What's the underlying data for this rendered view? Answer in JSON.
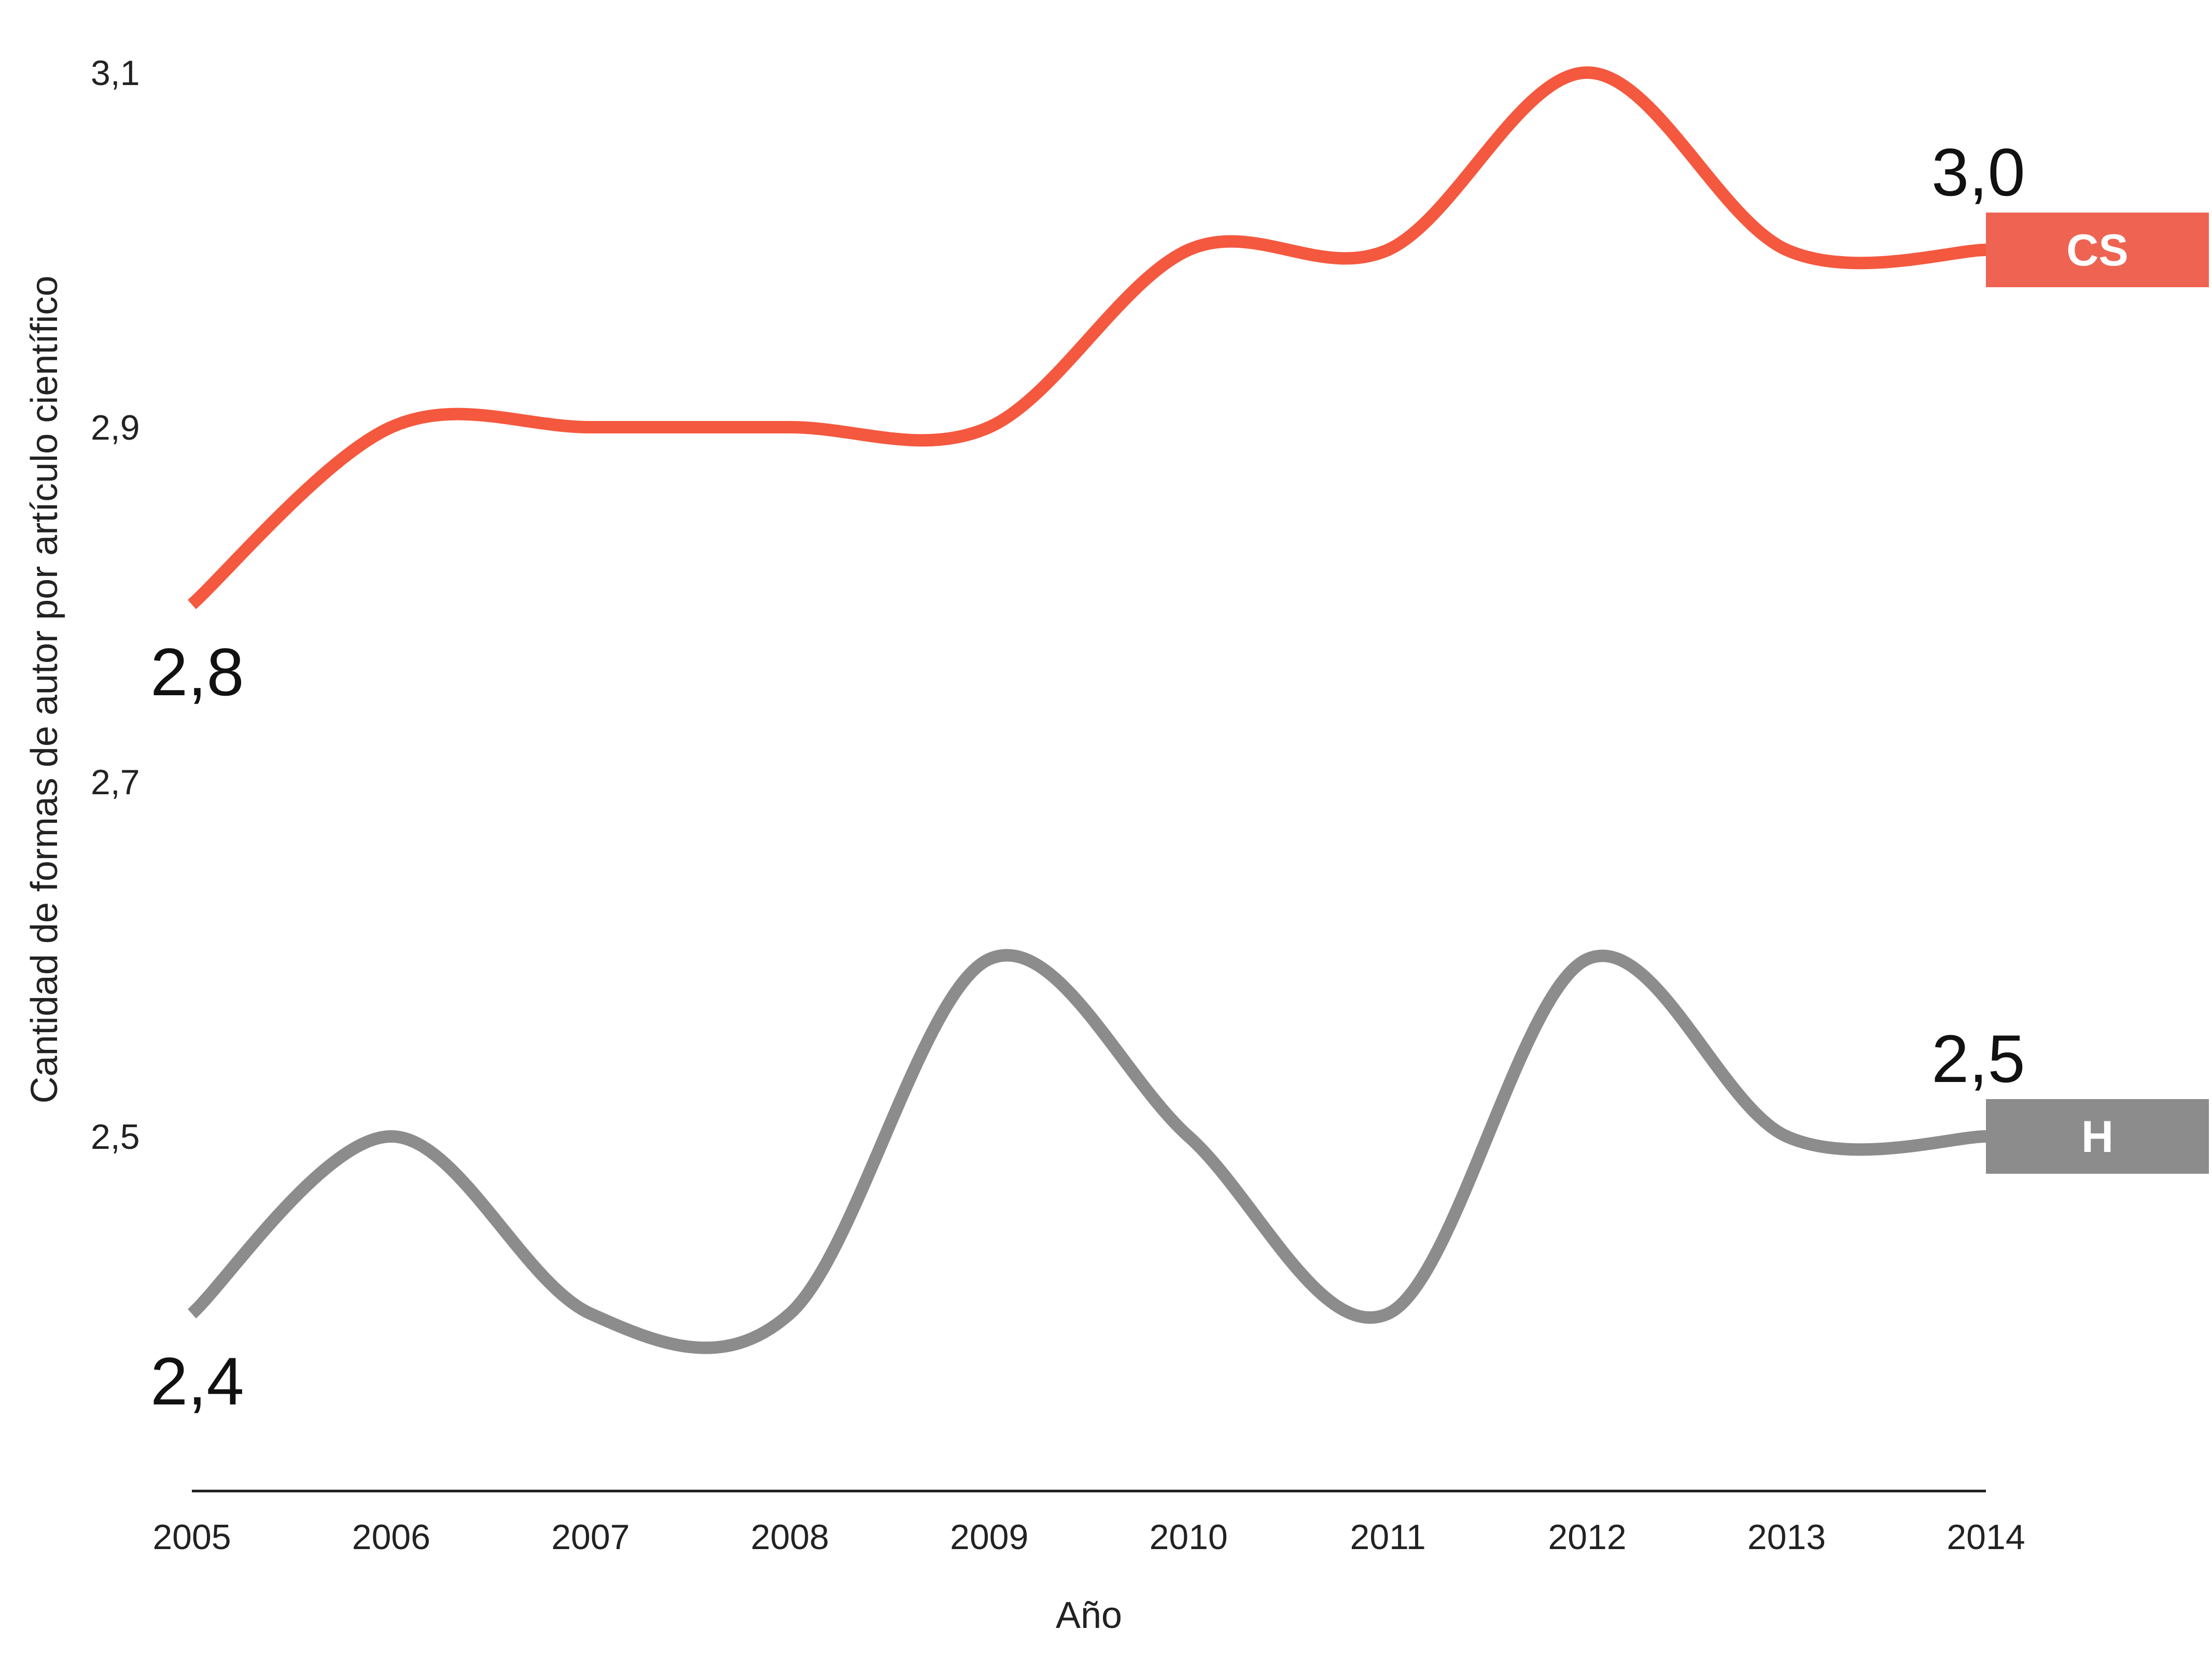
{
  "chart_data": {
    "type": "line",
    "title": "",
    "xlabel": "Año",
    "ylabel": "Cantidad de formas de autor por artículo científico",
    "x": [
      2005,
      2006,
      2007,
      2008,
      2009,
      2010,
      2011,
      2012,
      2013,
      2014
    ],
    "x_tick_labels": [
      "2005",
      "2006",
      "2007",
      "2008",
      "2009",
      "2010",
      "2011",
      "2012",
      "2013",
      "2014"
    ],
    "y_ticks": [
      2.5,
      2.7,
      2.9,
      3.1
    ],
    "y_tick_labels": [
      "2,5",
      "2,7",
      "2,9",
      "3,1"
    ],
    "ylim": [
      2.3,
      3.1
    ],
    "grid": false,
    "legend": "labels at line ends",
    "series": [
      {
        "name": "CS",
        "color": "#f4583e",
        "badge_color": "#ef6353",
        "values": [
          2.8,
          2.9,
          2.9,
          2.9,
          2.9,
          3.0,
          3.0,
          3.1,
          3.0,
          3.0
        ],
        "start_label": "2,8",
        "end_label": "3,0"
      },
      {
        "name": "H",
        "color": "#8c8c8c",
        "badge_color": "#8c8c8c",
        "values": [
          2.4,
          2.5,
          2.4,
          2.4,
          2.6,
          2.5,
          2.4,
          2.6,
          2.5,
          2.5
        ],
        "start_label": "2,4",
        "end_label": "2,5"
      }
    ]
  }
}
